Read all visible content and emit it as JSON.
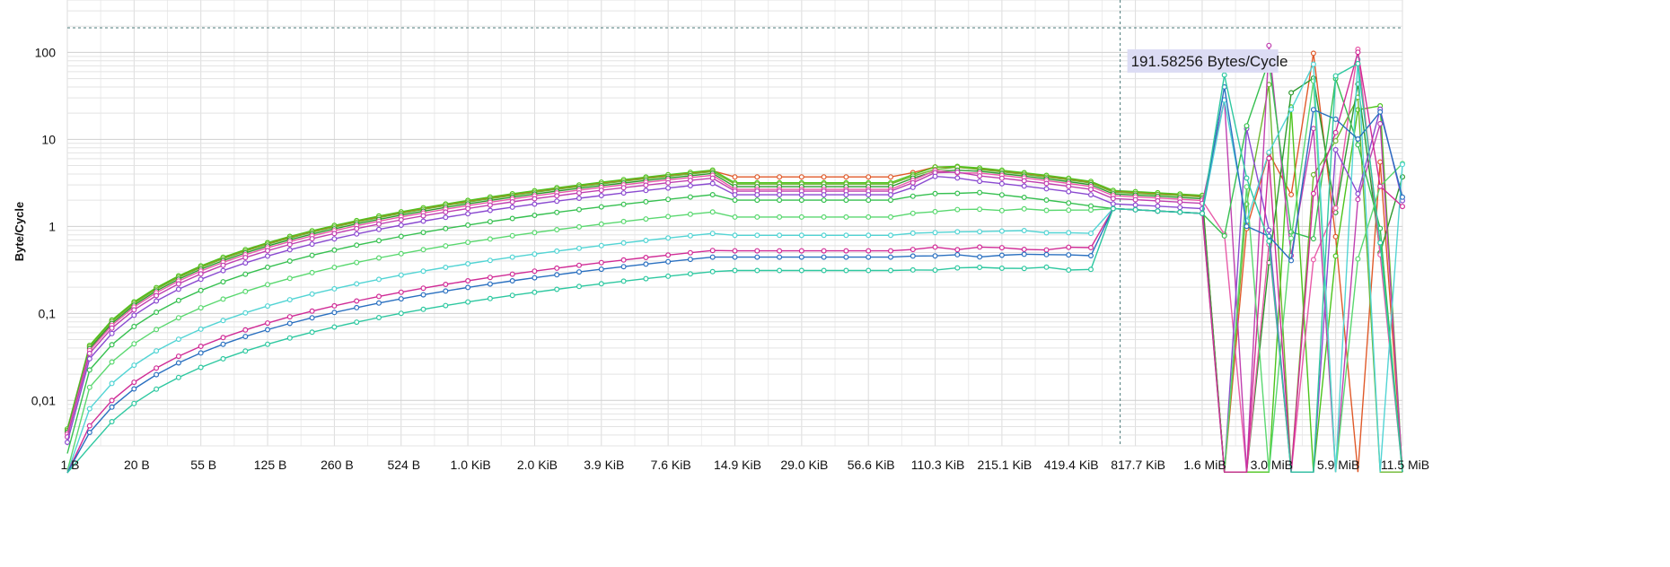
{
  "chart_data": {
    "type": "line",
    "title": "",
    "xlabel": "",
    "ylabel": "Byte/Cycle",
    "y_scale": "log",
    "y_decimal_separator": ",",
    "ylim": [
      0.003,
      400
    ],
    "y_ticks": [
      {
        "value": 100,
        "label": "100"
      },
      {
        "value": 10,
        "label": "10"
      },
      {
        "value": 1,
        "label": "1"
      },
      {
        "value": 0.1,
        "label": "0,1"
      },
      {
        "value": 0.01,
        "label": "0,01"
      }
    ],
    "x_tick_labels": [
      "1 B",
      "20 B",
      "55 B",
      "125 B",
      "260 B",
      "524 B",
      "1.0 KiB",
      "2.0 KiB",
      "3.9 KiB",
      "7.6 KiB",
      "14.9 KiB",
      "29.0 KiB",
      "56.6 KiB",
      "110.3 KiB",
      "215.1 KiB",
      "419.4 KiB",
      "817.7 KiB",
      "1.6 MiB",
      "3.0 MiB",
      "5.9 MiB",
      "11.5 MiB"
    ],
    "points_per_tick_interval": 3,
    "grid": true,
    "legend": "none",
    "cursor": {
      "x_label": "817.7 KiB",
      "value": 191.58256,
      "readout": "191.58256 Bytes/Cycle"
    },
    "series": [
      {
        "color": "#e05a2a",
        "plateau": 4.6,
        "dip": 3.6,
        "max": 4.9
      },
      {
        "color": "#4cc41c",
        "plateau": 4.7,
        "dip": 3.0,
        "max": 5.0
      },
      {
        "color": "#6db82e",
        "plateau": 4.5,
        "dip": 2.9,
        "max": 4.8
      },
      {
        "color": "#2e9a2e",
        "plateau": 4.3,
        "dip": 2.7,
        "max": 4.6
      },
      {
        "color": "#e85aa8",
        "plateau": 4.1,
        "dip": 2.5,
        "max": 4.4
      },
      {
        "color": "#c040b0",
        "plateau": 3.8,
        "dip": 2.4,
        "max": 4.2
      },
      {
        "color": "#8a4ad0",
        "plateau": 3.3,
        "dip": 2.2,
        "max": 3.8
      },
      {
        "color": "#36c050",
        "plateau": 2.45,
        "dip": 1.95,
        "max": 2.45
      },
      {
        "color": "#5ad870",
        "plateau": 1.55,
        "dip": 1.25,
        "max": 1.6
      },
      {
        "color": "#52d4d4",
        "plateau": 0.88,
        "dip": 0.78,
        "max": 0.9
      },
      {
        "color": "#d02c96",
        "plateau": 0.56,
        "dip": 0.52,
        "max": 0.58
      },
      {
        "color": "#2a70c0",
        "plateau": 0.47,
        "dip": 0.44,
        "max": 0.48
      },
      {
        "color": "#2ec8a0",
        "plateau": 0.32,
        "dip": 0.31,
        "max": 0.34
      }
    ]
  }
}
